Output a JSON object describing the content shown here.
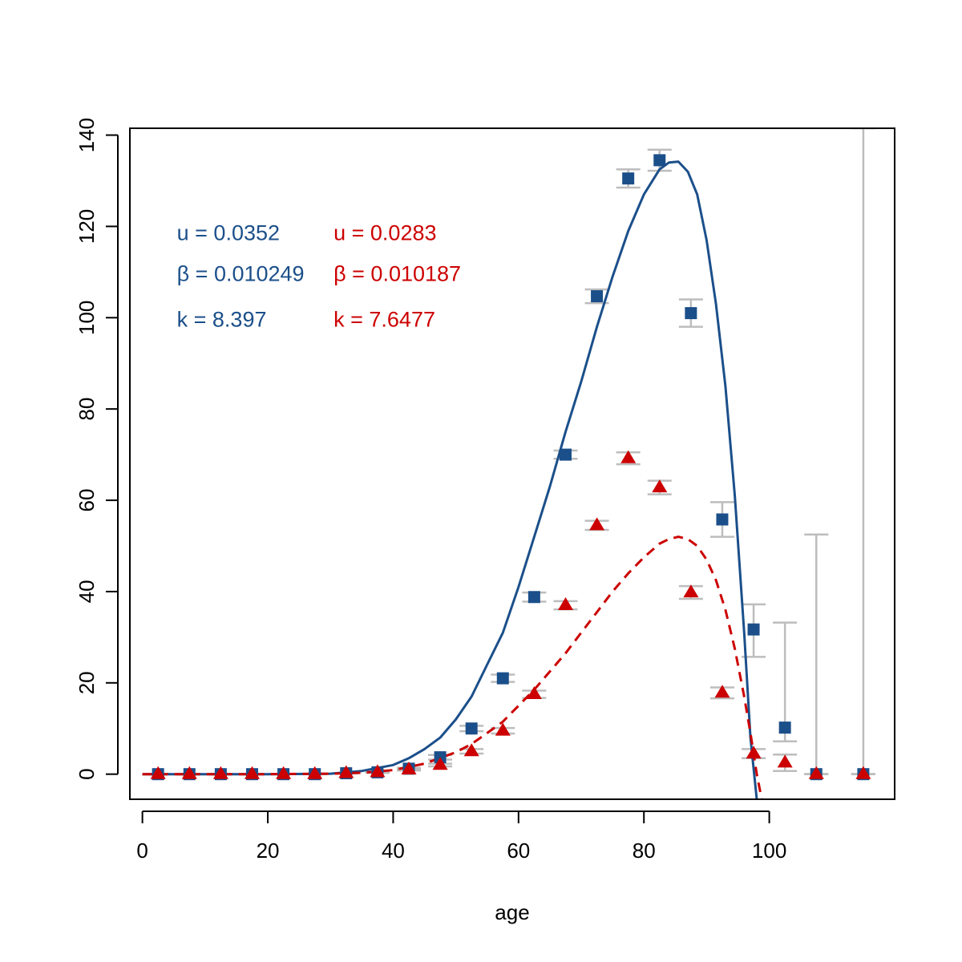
{
  "chart_data": {
    "type": "scatter",
    "xlabel": "age",
    "ylabel": "",
    "xlim": [
      -2,
      120
    ],
    "ylim": [
      -5.5,
      141.5
    ],
    "xticks": [
      0,
      20,
      40,
      60,
      80,
      100
    ],
    "yticks": [
      0,
      20,
      40,
      60,
      80,
      100,
      120,
      140
    ],
    "grid": false,
    "colors": {
      "blue": "#1b4f8a",
      "red": "#cc0000",
      "errorbar": "#bdbdbd"
    },
    "series": [
      {
        "marker": "square",
        "color": "#1b4f8a",
        "x": [
          2.5,
          7.5,
          12.5,
          17.5,
          22.5,
          27.5,
          32.5,
          37.5,
          42.5,
          47.5,
          52.5,
          57.5,
          62.5,
          67.5,
          72.5,
          77.5,
          82.5,
          87.5,
          92.5,
          97.5,
          102.5,
          107.5,
          115
        ],
        "y": [
          0,
          0,
          0,
          0,
          0,
          0,
          0.2,
          0.4,
          1.2,
          3.7,
          10,
          21,
          38.8,
          70,
          104.7,
          130.5,
          134.5,
          101,
          55.8,
          31.7,
          10.2,
          0,
          0
        ],
        "err_low": [
          0,
          0,
          0,
          0,
          0,
          0,
          0,
          0.1,
          0.2,
          0.5,
          0.6,
          0.8,
          1.0,
          0.9,
          1.5,
          2.0,
          2.3,
          3.0,
          3.8,
          6.0,
          3.0,
          0,
          0
        ],
        "err_high": [
          0,
          0,
          0,
          0,
          0,
          0,
          0,
          0.1,
          0.2,
          0.5,
          0.6,
          0.8,
          1.0,
          0.9,
          1.5,
          2.0,
          2.3,
          3.0,
          3.8,
          5.5,
          23,
          52.5,
          141.5
        ]
      },
      {
        "marker": "triangle",
        "color": "#cc0000",
        "x": [
          2.5,
          7.5,
          12.5,
          17.5,
          22.5,
          27.5,
          32.5,
          37.5,
          42.5,
          47.5,
          52.5,
          57.5,
          62.5,
          67.5,
          72.5,
          77.5,
          82.5,
          87.5,
          92.5,
          97.5,
          102.5,
          107.5,
          115
        ],
        "y": [
          0,
          0,
          0,
          0,
          0,
          0,
          0.2,
          0.4,
          1.0,
          2.0,
          5.0,
          9.5,
          17.5,
          37.0,
          54.5,
          69.2,
          62.8,
          39.8,
          17.8,
          4.5,
          2.5,
          0,
          0
        ],
        "err_low": [
          0,
          0,
          0,
          0,
          0,
          0,
          0,
          0.1,
          0.2,
          0.3,
          0.5,
          0.6,
          0.8,
          0.9,
          1.0,
          1.3,
          1.5,
          1.4,
          1.2,
          1.0,
          1.8,
          0,
          0
        ],
        "err_high": [
          0,
          0,
          0,
          0,
          0,
          0,
          0,
          0.1,
          0.2,
          0.3,
          0.5,
          0.6,
          0.8,
          0.9,
          1.0,
          1.3,
          1.5,
          1.4,
          1.2,
          1.0,
          1.8,
          0,
          0
        ]
      }
    ],
    "curves": [
      {
        "style": "solid",
        "color": "#1b4f8a",
        "x": [
          0,
          10,
          20,
          30,
          35,
          40,
          42.5,
          45,
          47.5,
          50,
          52.5,
          55,
          57.5,
          60,
          62.5,
          65,
          67.5,
          70,
          72.5,
          75,
          77.5,
          80,
          82.5,
          84,
          85.5,
          87,
          88.5,
          90,
          91.5,
          93,
          94.5,
          96,
          97,
          98
        ],
        "y": [
          0,
          0,
          0,
          0.1,
          0.7,
          2.0,
          3.5,
          5.5,
          8.0,
          12.0,
          17.0,
          24.0,
          31.0,
          41.0,
          52.0,
          63.0,
          75.0,
          86.0,
          98.0,
          109.0,
          119.0,
          127.0,
          132.5,
          134.0,
          134.2,
          132.0,
          127.0,
          117.0,
          103.0,
          85.0,
          61.0,
          31.0,
          8.0,
          -5.5
        ]
      },
      {
        "style": "dashed",
        "color": "#cc0000",
        "x": [
          0,
          10,
          20,
          30,
          35,
          40,
          45,
          50,
          52.5,
          55,
          57.5,
          60,
          62.5,
          65,
          67.5,
          70,
          72.5,
          75,
          77.5,
          80,
          82.5,
          84,
          85.5,
          87,
          88.5,
          90,
          91.5,
          93,
          94.5,
          96,
          97,
          98,
          98.8
        ],
        "y": [
          0,
          0,
          0,
          0.1,
          0.3,
          0.9,
          2.3,
          4.8,
          6.6,
          9.0,
          11.5,
          15.0,
          18.5,
          22.5,
          26.5,
          31.0,
          35.5,
          40.0,
          44.0,
          47.5,
          50.5,
          51.5,
          52.0,
          51.5,
          50.0,
          47.0,
          42.5,
          36.0,
          27.5,
          17.0,
          9.0,
          0.0,
          -5.5
        ]
      }
    ],
    "annotations": [
      {
        "text": "u = 0.0352",
        "color": "#1b4f8a",
        "x": 5.5,
        "y": 117
      },
      {
        "text": "β = 0.010249",
        "color": "#1b4f8a",
        "x": 5.5,
        "y": 108
      },
      {
        "text": "k =  8.397",
        "color": "#1b4f8a",
        "x": 5.5,
        "y": 98
      },
      {
        "text": "u = 0.0283",
        "color": "#cc0000",
        "x": 30.5,
        "y": 117
      },
      {
        "text": "β = 0.010187",
        "color": "#cc0000",
        "x": 30.5,
        "y": 108
      },
      {
        "text": "k =  7.6477",
        "color": "#cc0000",
        "x": 30.5,
        "y": 98
      }
    ]
  }
}
